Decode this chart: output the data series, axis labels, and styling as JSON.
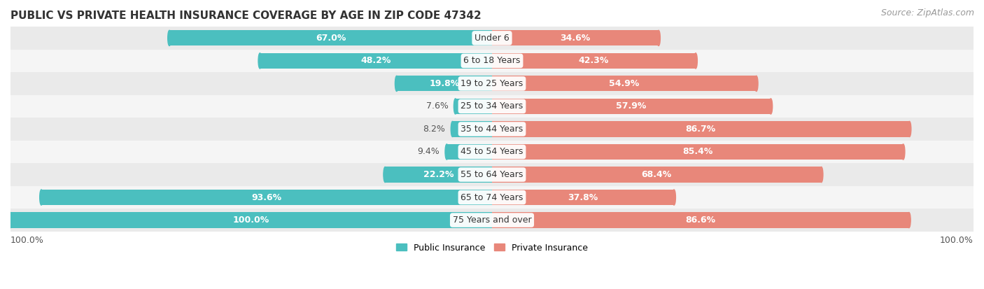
{
  "title": "PUBLIC VS PRIVATE HEALTH INSURANCE COVERAGE BY AGE IN ZIP CODE 47342",
  "source": "Source: ZipAtlas.com",
  "categories": [
    "Under 6",
    "6 to 18 Years",
    "19 to 25 Years",
    "25 to 34 Years",
    "35 to 44 Years",
    "45 to 54 Years",
    "55 to 64 Years",
    "65 to 74 Years",
    "75 Years and over"
  ],
  "public_values": [
    67.0,
    48.2,
    19.8,
    7.6,
    8.2,
    9.4,
    22.2,
    93.6,
    100.0
  ],
  "private_values": [
    34.6,
    42.3,
    54.9,
    57.9,
    86.7,
    85.4,
    68.4,
    37.8,
    86.6
  ],
  "public_color": "#4BBFBF",
  "private_color": "#E8877A",
  "row_bg_colors": [
    "#EAEAEA",
    "#F5F5F5"
  ],
  "label_font_size": 9.0,
  "title_font_size": 11,
  "source_font_size": 9,
  "max_value": 100.0,
  "pub_inside_threshold": 15,
  "priv_inside_threshold": 15,
  "figsize": [
    14.06,
    4.13
  ]
}
